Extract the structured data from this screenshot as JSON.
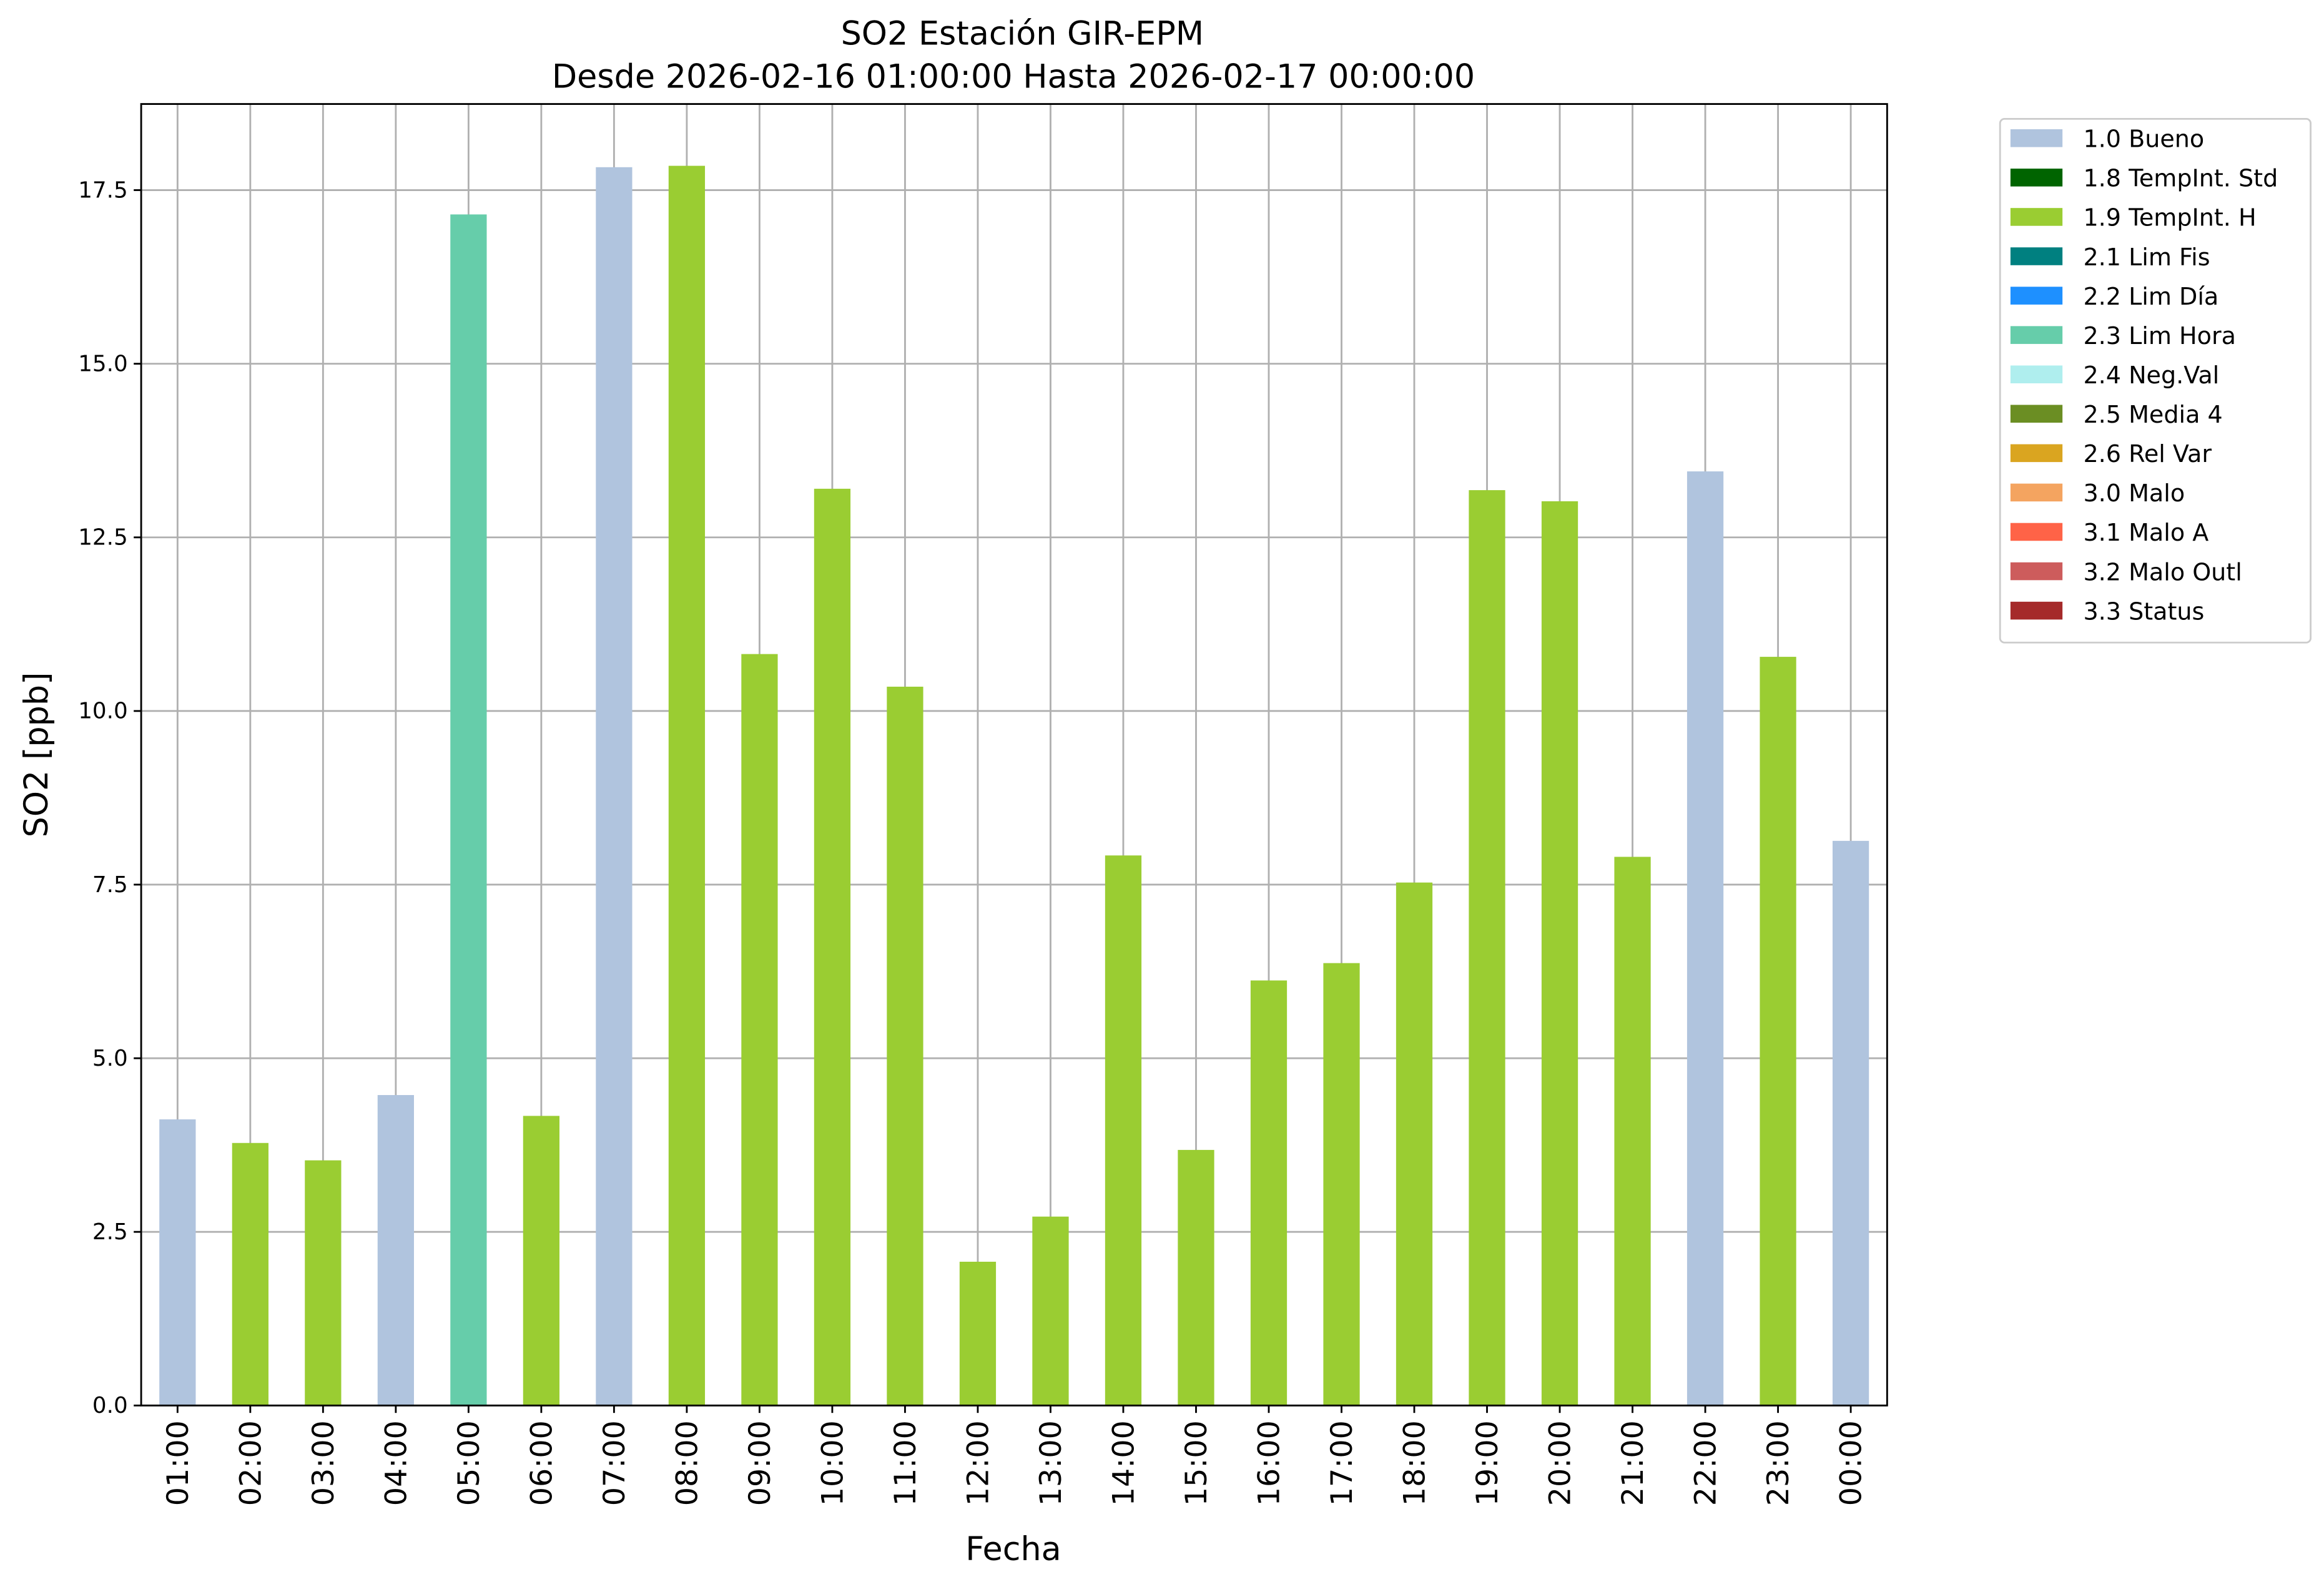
{
  "chart_data": {
    "type": "stacked_bar",
    "title": "SO2 Estación GIR-EPM",
    "subtitle": "Desde 2026-02-16 01:00:00 Hasta 2026-02-17 00:00:00",
    "x_label": "Fecha",
    "y_label": "SO2 [ppb]",
    "categories": [
      "01:00",
      "02:00",
      "03:00",
      "04:00",
      "05:00",
      "06:00",
      "07:00",
      "08:00",
      "09:00",
      "10:00",
      "11:00",
      "12:00",
      "13:00",
      "14:00",
      "15:00",
      "16:00",
      "17:00",
      "18:00",
      "19:00",
      "20:00",
      "21:00",
      "22:00",
      "23:00",
      "00:00"
    ],
    "series": [
      {
        "name": "1.0 Bueno",
        "color": "#b0c4de",
        "values": [
          4.12,
          null,
          null,
          4.47,
          null,
          null,
          17.83,
          null,
          null,
          null,
          null,
          null,
          null,
          null,
          null,
          null,
          null,
          null,
          null,
          null,
          null,
          13.45,
          null,
          8.13
        ]
      },
      {
        "name": "1.8 TempInt. Std",
        "color": "#006400",
        "values": [
          null,
          null,
          null,
          null,
          null,
          null,
          null,
          null,
          null,
          null,
          null,
          null,
          null,
          null,
          null,
          null,
          null,
          null,
          null,
          null,
          null,
          null,
          null,
          null
        ]
      },
      {
        "name": "1.9 TempInt. H",
        "color": "#9acd32",
        "values": [
          null,
          3.78,
          3.53,
          null,
          null,
          4.17,
          null,
          17.85,
          10.82,
          13.2,
          10.35,
          2.07,
          2.72,
          7.92,
          3.68,
          6.12,
          6.37,
          7.53,
          13.18,
          13.02,
          7.9,
          null,
          10.78,
          null
        ]
      },
      {
        "name": "2.1 Lim Fis",
        "color": "#008080",
        "values": [
          null,
          null,
          null,
          null,
          null,
          null,
          null,
          null,
          null,
          null,
          null,
          null,
          null,
          null,
          null,
          null,
          null,
          null,
          null,
          null,
          null,
          null,
          null,
          null
        ]
      },
      {
        "name": "2.2 Lim Día",
        "color": "#1e90ff",
        "values": [
          null,
          null,
          null,
          null,
          null,
          null,
          null,
          null,
          null,
          null,
          null,
          null,
          null,
          null,
          null,
          null,
          null,
          null,
          null,
          null,
          null,
          null,
          null,
          null
        ]
      },
      {
        "name": "2.3 Lim Hora",
        "color": "#66cdaa",
        "values": [
          null,
          null,
          null,
          null,
          17.15,
          null,
          null,
          null,
          null,
          null,
          null,
          null,
          null,
          null,
          null,
          null,
          null,
          null,
          null,
          null,
          null,
          null,
          null,
          null
        ]
      },
      {
        "name": "2.4 Neg.Val",
        "color": "#afeeee",
        "values": [
          null,
          null,
          null,
          null,
          null,
          null,
          null,
          null,
          null,
          null,
          null,
          null,
          null,
          null,
          null,
          null,
          null,
          null,
          null,
          null,
          null,
          null,
          null,
          null
        ]
      },
      {
        "name": "2.5 Media 4",
        "color": "#6b8e23",
        "values": [
          null,
          null,
          null,
          null,
          null,
          null,
          null,
          null,
          null,
          null,
          null,
          null,
          null,
          null,
          null,
          null,
          null,
          null,
          null,
          null,
          null,
          null,
          null,
          null
        ]
      },
      {
        "name": "2.6 Rel Var",
        "color": "#daa520",
        "values": [
          null,
          null,
          null,
          null,
          null,
          null,
          null,
          null,
          null,
          null,
          null,
          null,
          null,
          null,
          null,
          null,
          null,
          null,
          null,
          null,
          null,
          null,
          null,
          null
        ]
      },
      {
        "name": "3.0 Malo",
        "color": "#f4a460",
        "values": [
          null,
          null,
          null,
          null,
          null,
          null,
          null,
          null,
          null,
          null,
          null,
          null,
          null,
          null,
          null,
          null,
          null,
          null,
          null,
          null,
          null,
          null,
          null,
          null
        ]
      },
      {
        "name": "3.1 Malo A",
        "color": "#ff6347",
        "values": [
          null,
          null,
          null,
          null,
          null,
          null,
          null,
          null,
          null,
          null,
          null,
          null,
          null,
          null,
          null,
          null,
          null,
          null,
          null,
          null,
          null,
          null,
          null,
          null
        ]
      },
      {
        "name": "3.2 Malo Outl",
        "color": "#cd5c5c",
        "values": [
          null,
          null,
          null,
          null,
          null,
          null,
          null,
          null,
          null,
          null,
          null,
          null,
          null,
          null,
          null,
          null,
          null,
          null,
          null,
          null,
          null,
          null,
          null,
          null
        ]
      },
      {
        "name": "3.3 Status",
        "color": "#a52a2a",
        "values": [
          null,
          null,
          null,
          null,
          null,
          null,
          null,
          null,
          null,
          null,
          null,
          null,
          null,
          null,
          null,
          null,
          null,
          null,
          null,
          null,
          null,
          null,
          null,
          null
        ]
      }
    ],
    "ylim": [
      0,
      18.74
    ],
    "yticks": [
      {
        "value": 0,
        "label": "0.0"
      },
      {
        "value": 2.5,
        "label": "2.5"
      },
      {
        "value": 5,
        "label": "5.0"
      },
      {
        "value": 7.5,
        "label": "7.5"
      },
      {
        "value": 10,
        "label": "10.0"
      },
      {
        "value": 12.5,
        "label": "12.5"
      },
      {
        "value": 15,
        "label": "15.0"
      },
      {
        "value": 17.5,
        "label": "17.5"
      }
    ],
    "grid": true,
    "legend": "outside right"
  }
}
